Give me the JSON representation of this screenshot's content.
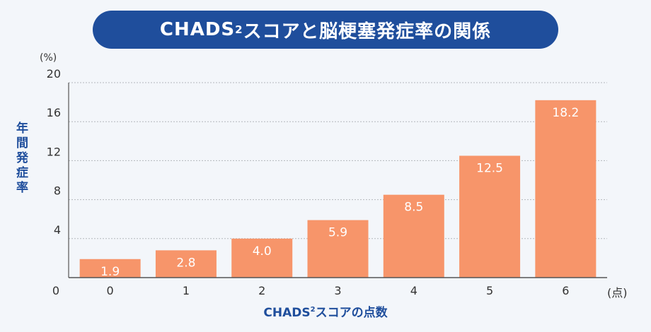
{
  "title": {
    "prefix": "CHADS",
    "sup": "2",
    "suffix": "スコアと脳梗塞発症率の関係"
  },
  "colors": {
    "bar": "#f7956a",
    "accent": "#1f4e9c",
    "label": "#ffffff"
  },
  "chart_data": {
    "type": "bar",
    "y_unit": "(%)",
    "ylabel": "年間発症率",
    "x_unit": "(点)",
    "xlabel": {
      "prefix": "CHADS",
      "sup": "2",
      "suffix": "スコアの点数"
    },
    "categories": [
      "0",
      "1",
      "2",
      "3",
      "4",
      "5",
      "6"
    ],
    "values": [
      1.9,
      2.8,
      4.0,
      5.9,
      8.5,
      12.5,
      18.2
    ],
    "value_labels": [
      "1.9",
      "2.8",
      "4.0",
      "5.9",
      "8.5",
      "12.5",
      "18.2"
    ],
    "ylim": [
      0,
      20
    ],
    "yticks": [
      "0",
      "4",
      "8",
      "12",
      "16",
      "20"
    ],
    "grid": true
  }
}
